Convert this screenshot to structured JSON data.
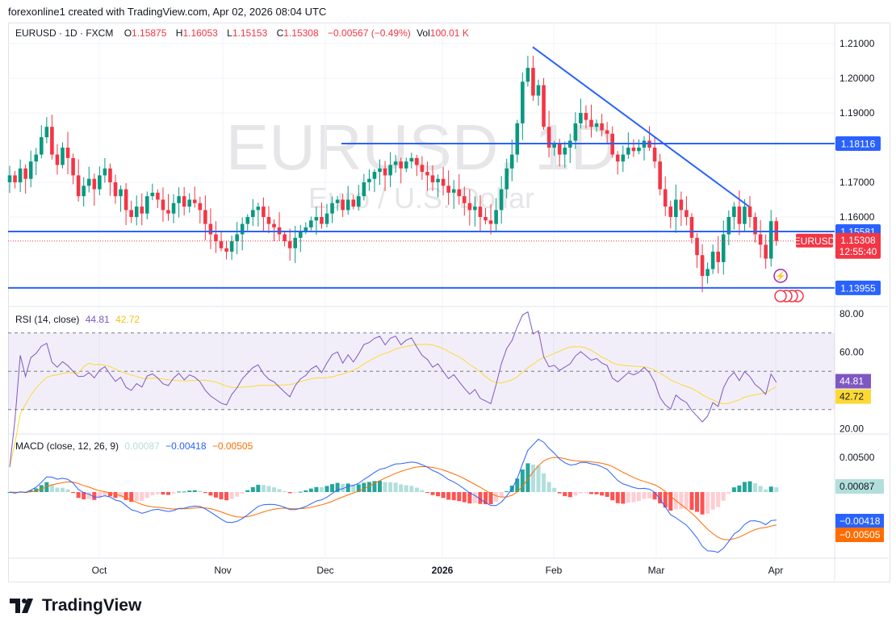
{
  "credit": "forexonline1 created with TradingView.com, Apr 02, 2026 08:04 UTC",
  "legend": {
    "symbol": "EURUSD · 1D · FXCM",
    "o_label": "O",
    "o": "1.15875",
    "h_label": "H",
    "h": "1.16053",
    "l_label": "L",
    "l": "1.15153",
    "c_label": "C",
    "c": "1.15308",
    "change": "−0.00567 (−0.49%)",
    "vol_label": "Vol",
    "vol": "100.01 K"
  },
  "watermark": {
    "title": "EURUSD, 1D",
    "subtitle": "Euro / U.S. Dollar"
  },
  "rsi_legend": {
    "name": "RSI (14, close)",
    "rsi": "44.81",
    "ma": "42.72"
  },
  "macd_legend": {
    "name": "MACD (close, 12, 26, 9)",
    "hist": "0.00087",
    "macd": "−0.00418",
    "signal": "−0.00505"
  },
  "price_tag": {
    "symbol": "EURUSD",
    "price": "1.15308",
    "countdown": "12:55:40"
  },
  "levels": [
    {
      "label": "1.18116",
      "value": 1.18116
    },
    {
      "label": "1.15581",
      "value": 1.15581
    },
    {
      "label": "1.13955",
      "value": 1.13955
    }
  ],
  "rsi_tags": {
    "rsi": "44.81",
    "ma": "42.72"
  },
  "macd_tags": {
    "hist": "0.00087",
    "macd": "−0.00418",
    "signal": "−0.00505"
  },
  "brand": "TradingView",
  "colors": {
    "up": "#089981",
    "down": "#f23645",
    "level": "#2962ff",
    "rsi": "#7e57c2",
    "rsi_ma": "#fdd835",
    "macd": "#2962ff",
    "signal": "#ff6d00"
  },
  "chart_data": {
    "type": "candlestick",
    "symbol": "EURUSD",
    "interval": "1D",
    "price_axis": {
      "ticks": [
        "1.21000",
        "1.20000",
        "1.19000",
        "1.17000",
        "1.16000"
      ],
      "range": [
        1.133,
        1.217
      ]
    },
    "x_ticks": [
      "Oct",
      "Nov",
      "Dec",
      "2026",
      "Feb",
      "Mar",
      "Apr"
    ],
    "closes": [
      1.172,
      1.17,
      1.174,
      1.171,
      1.176,
      1.178,
      1.183,
      1.186,
      1.178,
      1.175,
      1.18,
      1.177,
      1.172,
      1.166,
      1.169,
      1.171,
      1.168,
      1.172,
      1.174,
      1.17,
      1.166,
      1.168,
      1.162,
      1.16,
      1.163,
      1.161,
      1.166,
      1.167,
      1.165,
      1.162,
      1.161,
      1.164,
      1.166,
      1.163,
      1.165,
      1.164,
      1.162,
      1.158,
      1.155,
      1.153,
      1.151,
      1.15,
      1.153,
      1.155,
      1.158,
      1.16,
      1.162,
      1.163,
      1.16,
      1.158,
      1.157,
      1.155,
      1.153,
      1.151,
      1.154,
      1.156,
      1.157,
      1.159,
      1.16,
      1.158,
      1.161,
      1.164,
      1.165,
      1.162,
      1.165,
      1.163,
      1.166,
      1.17,
      1.171,
      1.173,
      1.174,
      1.172,
      1.175,
      1.176,
      1.174,
      1.176,
      1.177,
      1.175,
      1.173,
      1.172,
      1.17,
      1.171,
      1.169,
      1.167,
      1.168,
      1.166,
      1.164,
      1.162,
      1.163,
      1.16,
      1.159,
      1.158,
      1.162,
      1.168,
      1.174,
      1.178,
      1.187,
      1.199,
      1.203,
      1.195,
      1.198,
      1.186,
      1.18,
      1.181,
      1.178,
      1.18,
      1.182,
      1.187,
      1.19,
      1.188,
      1.186,
      1.187,
      1.185,
      1.184,
      1.178,
      1.176,
      1.178,
      1.18,
      1.179,
      1.18,
      1.182,
      1.18,
      1.176,
      1.168,
      1.163,
      1.16,
      1.165,
      1.162,
      1.16,
      1.154,
      1.149,
      1.143,
      1.145,
      1.15,
      1.147,
      1.155,
      1.16,
      1.163,
      1.158,
      1.163,
      1.16,
      1.155,
      1.152,
      1.148,
      1.1588,
      1.15308
    ],
    "trendline": {
      "from": {
        "x": "Jan 27",
        "y": 1.209
      },
      "to": {
        "x": "Mar 27",
        "y": 1.163
      }
    },
    "rsi": {
      "axis_ticks": [
        "80.00",
        "60.00",
        "20.00"
      ],
      "bands": [
        70,
        30
      ],
      "range": [
        18,
        82
      ]
    },
    "macd": {
      "axis_ticks": [
        "0.00500"
      ],
      "range": [
        -0.0128,
        0.0075
      ]
    }
  }
}
